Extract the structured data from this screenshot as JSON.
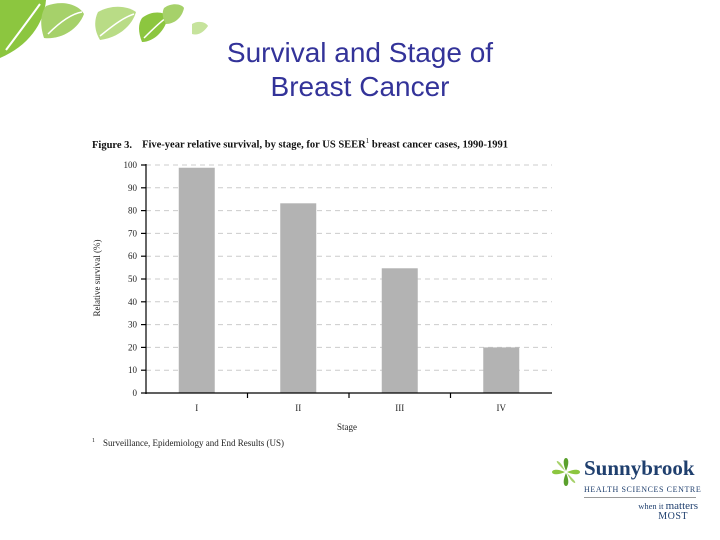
{
  "slide": {
    "title_line1": "Survival and Stage of",
    "title_line2": "Breast Cancer"
  },
  "figure": {
    "number": "Figure 3.",
    "caption": "Five-year relative survival, by stage, for US SEER",
    "caption_sup": "1",
    "caption_tail": " breast cancer cases, 1990-1991",
    "footnote_marker": "1",
    "footnote_text": "Surveillance, Epidemiology and End Results (US)"
  },
  "chart_data": {
    "type": "bar",
    "categories": [
      "I",
      "II",
      "III",
      "IV"
    ],
    "values": [
      98.8,
      83.2,
      54.7,
      20.0
    ],
    "xlabel": "Stage",
    "ylabel": "Relative survival (%)",
    "ylim": [
      0,
      100
    ],
    "yticks": [
      0,
      10,
      20,
      30,
      40,
      50,
      60,
      70,
      80,
      90,
      100
    ],
    "grid": true,
    "bar_color": "#b3b3b3",
    "grid_color": "#cccccc"
  },
  "logo": {
    "name": "Sunnybrook",
    "subtitle": "HEALTH SCIENCES CENTRE",
    "tagline_small": "when it",
    "tagline_big": "matters",
    "tagline_line2": "MOST"
  },
  "colors": {
    "title": "#333399",
    "leaf_green": "#8cc63f",
    "logo_blue": "#1f3f6e"
  }
}
